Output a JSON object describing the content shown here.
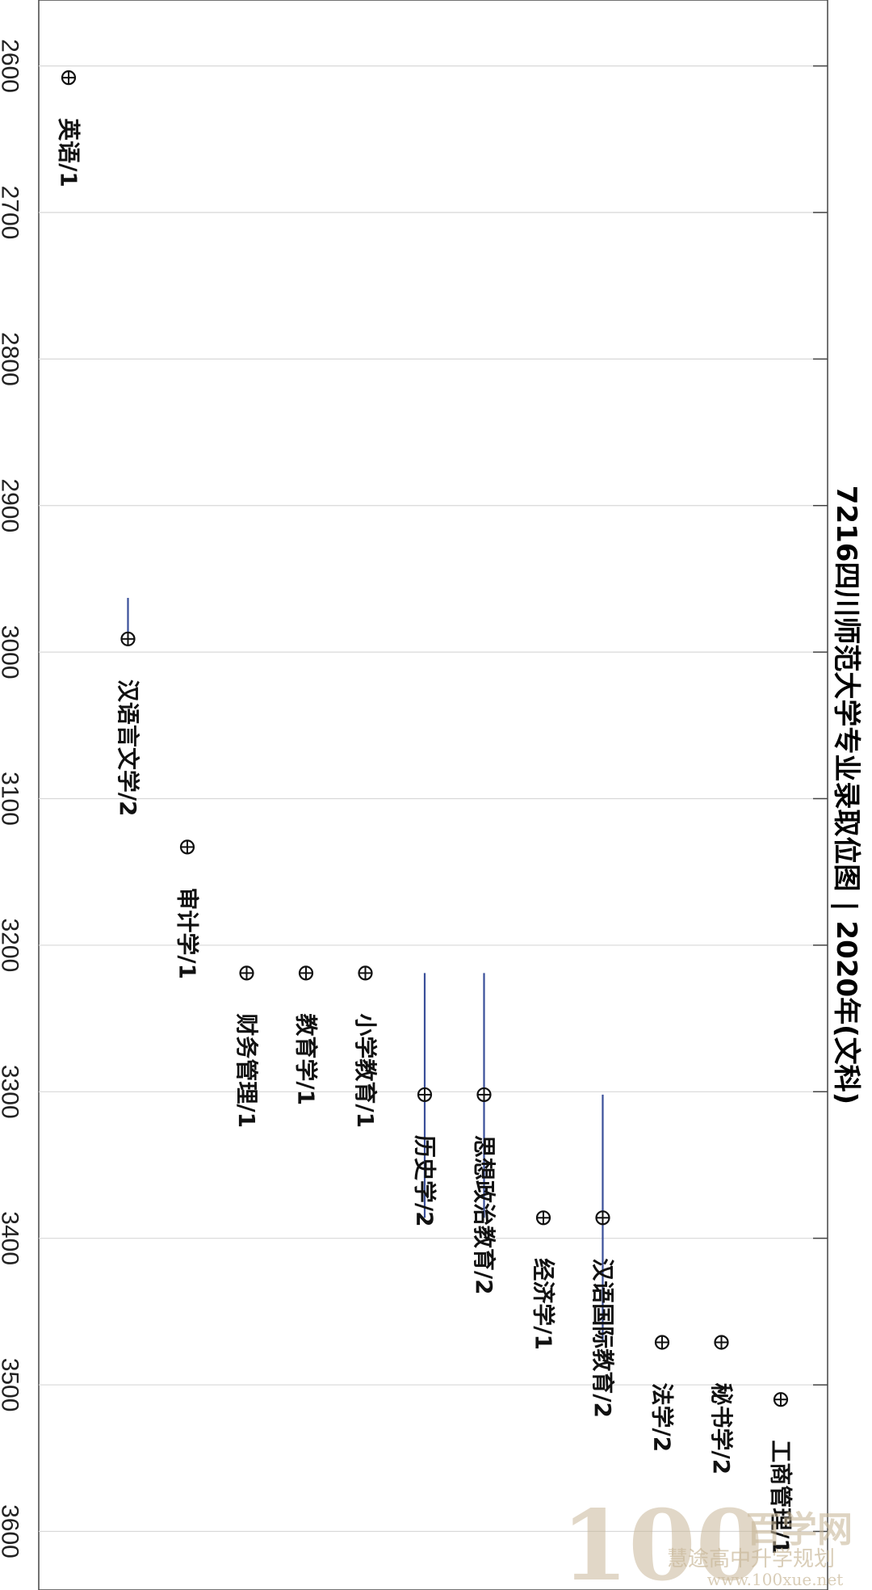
{
  "chart_data": {
    "type": "scatter",
    "title": "7216四川师范大学专业录取位图 | 2020年(文科)",
    "orientation": "rotated-90-cw",
    "ylim": [
      2555,
      3640
    ],
    "grid": true,
    "y_ticks": [
      2600,
      2700,
      2800,
      2900,
      3000,
      3100,
      3200,
      3300,
      3400,
      3500,
      3600
    ],
    "points": [
      {
        "label": "英语/1",
        "value": 2608
      },
      {
        "label": "汉语言文学/2",
        "value": 2991,
        "range": [
          2963,
          2991
        ]
      },
      {
        "label": "审计学/1",
        "value": 3133
      },
      {
        "label": "财务管理/1",
        "value": 3219
      },
      {
        "label": "教育学/1",
        "value": 3219
      },
      {
        "label": "小学教育/1",
        "value": 3219
      },
      {
        "label": "历史学/2",
        "value": 3302,
        "range": [
          3219,
          3386
        ]
      },
      {
        "label": "思想政治教育/2",
        "value": 3302,
        "range": [
          3219,
          3386
        ]
      },
      {
        "label": "经济学/1",
        "value": 3386
      },
      {
        "label": "汉语国际教育/2",
        "value": 3386,
        "range": [
          3302,
          3471
        ]
      },
      {
        "label": "法学/2",
        "value": 3471
      },
      {
        "label": "秘书学/2",
        "value": 3471
      },
      {
        "label": "工商管理/1",
        "value": 3510
      }
    ]
  },
  "watermark": {
    "big": "100",
    "brand": "百学网",
    "slogan": "慧途高中升学规划",
    "url": "www.100xue.net"
  },
  "colors": {
    "range_line": "#3a4f9a",
    "grid": "#d8d8d8",
    "axis": "#444444"
  }
}
